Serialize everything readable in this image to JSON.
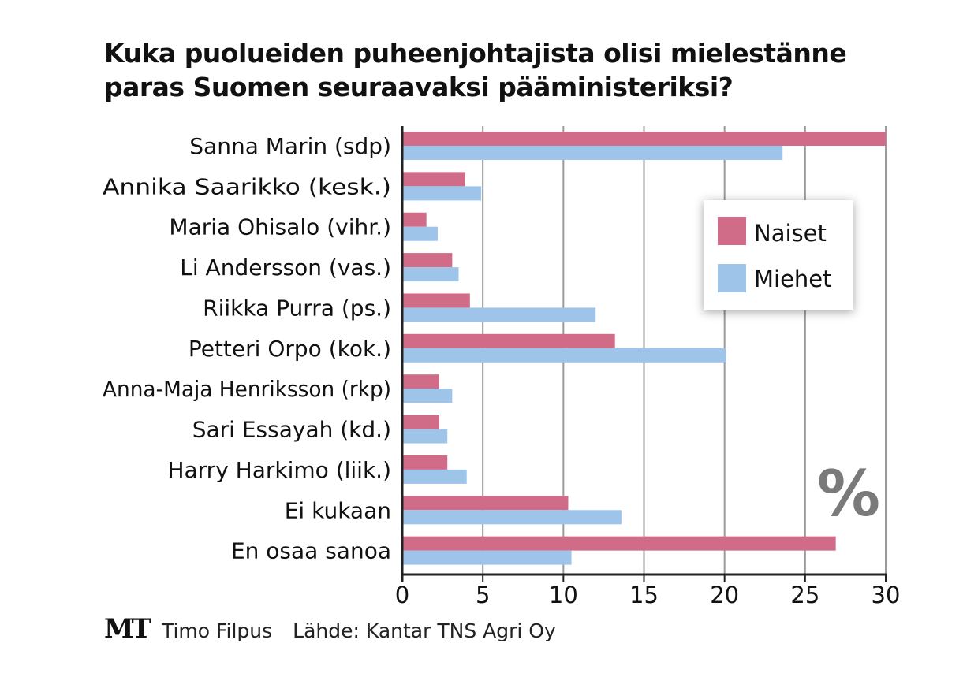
{
  "title_lines": [
    "Kuka puolueiden puheenjohtajista olisi mielestänne",
    "paras Suomen seuraavaksi pääministeriksi?"
  ],
  "colors": {
    "naiset": "#d06c87",
    "miehet": "#9fc4ea",
    "grid": "#9a9a9a",
    "axis": "#222222",
    "unit": "#7a7a7a"
  },
  "unit_label": "%",
  "footer": {
    "logo": "MT",
    "author": "Timo Filpus",
    "source": "Lähde: Kantar TNS Agri Oy"
  },
  "chart_data": {
    "type": "bar",
    "orientation": "horizontal",
    "categories": [
      "Sanna Marin (sdp)",
      "Annika Saarikko (kesk.)",
      "Maria Ohisalo (vihr.)",
      "Li Andersson (vas.)",
      "Riikka Purra (ps.)",
      "Petteri Orpo (kok.)",
      "Anna-Maja Henriksson (rkp)",
      "Sari Essayah (kd.)",
      "Harry Harkimo (liik.)",
      "Ei kukaan",
      "En osaa sanoa"
    ],
    "series": [
      {
        "name": "Naiset",
        "values": [
          30,
          3.9,
          1.5,
          3.1,
          4.2,
          13.2,
          2.3,
          2.3,
          2.8,
          10.3,
          26.9
        ]
      },
      {
        "name": "Miehet",
        "values": [
          23.6,
          4.9,
          2.2,
          3.5,
          12.0,
          20.1,
          3.1,
          2.8,
          4.0,
          13.6,
          10.5
        ]
      }
    ],
    "xlim": [
      0,
      30
    ],
    "xticks": [
      "0",
      "5",
      "10",
      "15",
      "20",
      "25",
      "30"
    ],
    "xlabel": "%",
    "legend": {
      "position": "top-right",
      "entries": [
        "Naiset",
        "Miehet"
      ]
    },
    "grid": true
  }
}
